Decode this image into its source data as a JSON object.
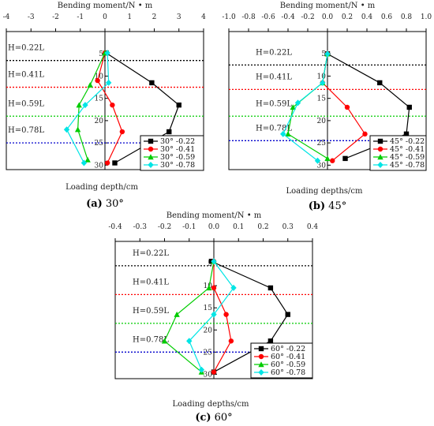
{
  "chart_data": [
    {
      "type": "line",
      "panel": "a",
      "caption_letter": "(a)",
      "caption_text": "30°",
      "xlabel_top": "Bending moment/N • m",
      "ylabel_bottom": "Loading depth/cm",
      "xlim": [
        -4,
        4
      ],
      "ylim": [
        0,
        30
      ],
      "x_ticks": [
        -4,
        -3,
        -2,
        -1,
        0,
        1,
        2,
        3,
        4
      ],
      "x_tick_labels": [
        "-4",
        "-3",
        "-2",
        "-1",
        "0",
        "1",
        "2",
        "3",
        "4"
      ],
      "y_ticks": [
        5,
        10,
        15,
        20,
        25,
        30
      ],
      "y_tick_labels": [
        "5",
        "10",
        "15",
        "20",
        "25",
        "30"
      ],
      "h_lines": [
        {
          "label": "H=0.22L",
          "depth": 6.5,
          "color": "#000000"
        },
        {
          "label": "H=0.41L",
          "depth": 12.5,
          "color": "#ff0000"
        },
        {
          "label": "H=0.59L",
          "depth": 19.0,
          "color": "#00cc00"
        },
        {
          "label": "H=0.78L",
          "depth": 25.0,
          "color": "#0000cc"
        }
      ],
      "legend_position": "bottom-right",
      "series": [
        {
          "name": "30° -0.22",
          "color": "#000000",
          "marker": "square",
          "points": [
            [
              0.05,
              4.8
            ],
            [
              1.9,
              11.5
            ],
            [
              3.0,
              16.5
            ],
            [
              2.6,
              22.5
            ],
            [
              0.4,
              29.5
            ]
          ]
        },
        {
          "name": "30° -0.41",
          "color": "#ff0000",
          "marker": "circle",
          "points": [
            [
              0.0,
              4.8
            ],
            [
              -0.3,
              11.0
            ],
            [
              0.3,
              16.5
            ],
            [
              0.7,
              22.5
            ],
            [
              0.1,
              29.5
            ]
          ]
        },
        {
          "name": "30° -0.59",
          "color": "#00cc00",
          "marker": "triangle",
          "points": [
            [
              0.0,
              4.8
            ],
            [
              -0.6,
              12.0
            ],
            [
              -1.05,
              16.5
            ],
            [
              -1.1,
              22.0
            ],
            [
              -0.7,
              28.8
            ]
          ]
        },
        {
          "name": "30° -0.78",
          "color": "#00e5e5",
          "marker": "diamond",
          "points": [
            [
              0.1,
              4.8
            ],
            [
              0.15,
              11.5
            ],
            [
              -0.8,
              16.5
            ],
            [
              -1.55,
              22.0
            ],
            [
              -0.85,
              29.5
            ]
          ]
        }
      ]
    },
    {
      "type": "line",
      "panel": "b",
      "caption_letter": "(b)",
      "caption_text": "45°",
      "xlabel_top": "Bending moment/N • m",
      "ylabel_bottom": "Loading depths/cm",
      "xlim": [
        -1.0,
        1.0
      ],
      "ylim": [
        0,
        30
      ],
      "x_ticks": [
        -1.0,
        -0.8,
        -0.6,
        -0.4,
        -0.2,
        0.0,
        0.2,
        0.4,
        0.6,
        0.8,
        1.0
      ],
      "x_tick_labels": [
        "-1.0",
        "-0.8",
        "-0.6",
        "-0.4",
        "-0.2",
        "0.0",
        "0.2",
        "0.4",
        "0.6",
        "0.8",
        "1.0"
      ],
      "y_ticks": [
        5,
        10,
        15,
        20,
        25,
        30
      ],
      "y_tick_labels": [
        "5",
        "10",
        "15",
        "20",
        "25",
        "30"
      ],
      "h_lines": [
        {
          "label": "H=0.22L",
          "depth": 7.5,
          "color": "#000000"
        },
        {
          "label": "H=0.41L",
          "depth": 13.0,
          "color": "#ff0000"
        },
        {
          "label": "H=0.59L",
          "depth": 19.0,
          "color": "#00cc00"
        },
        {
          "label": "H=0.78L",
          "depth": 24.5,
          "color": "#0000cc"
        }
      ],
      "legend_position": "bottom-right",
      "series": [
        {
          "name": "45° -0.22",
          "color": "#000000",
          "marker": "square",
          "points": [
            [
              0.0,
              5.0
            ],
            [
              0.53,
              11.5
            ],
            [
              0.83,
              17.0
            ],
            [
              0.8,
              23.0
            ],
            [
              0.18,
              28.5
            ]
          ]
        },
        {
          "name": "45° -0.41",
          "color": "#ff0000",
          "marker": "circle",
          "points": [
            [
              0.0,
              5.0
            ],
            [
              -0.05,
              11.5
            ],
            [
              0.2,
              17.0
            ],
            [
              0.38,
              23.0
            ],
            [
              0.05,
              29.0
            ]
          ]
        },
        {
          "name": "45° -0.59",
          "color": "#00cc00",
          "marker": "triangle",
          "points": [
            [
              0.0,
              5.0
            ],
            [
              -0.05,
              11.5
            ],
            [
              -0.35,
              17.0
            ],
            [
              -0.4,
              23.0
            ],
            [
              0.0,
              28.5
            ]
          ]
        },
        {
          "name": "45° -0.78",
          "color": "#00e5e5",
          "marker": "diamond",
          "points": [
            [
              0.0,
              5.0
            ],
            [
              -0.05,
              11.5
            ],
            [
              -0.3,
              16.0
            ],
            [
              -0.45,
              23.0
            ],
            [
              -0.1,
              29.0
            ]
          ]
        }
      ]
    },
    {
      "type": "line",
      "panel": "c",
      "caption_letter": "(c)",
      "caption_text": "60°",
      "xlabel_top": "Bending moment/N • m",
      "ylabel_bottom": "Loading depths/cm",
      "xlim": [
        -0.4,
        0.4
      ],
      "ylim": [
        0,
        30
      ],
      "x_ticks": [
        -0.4,
        -0.3,
        -0.2,
        -0.1,
        0.0,
        0.1,
        0.2,
        0.3,
        0.4
      ],
      "x_tick_labels": [
        "-0.4",
        "-0.3",
        "-0.2",
        "-0.1",
        "0.0",
        "0.1",
        "0.2",
        "0.3",
        "0.4"
      ],
      "y_ticks": [
        5,
        10,
        15,
        20,
        25,
        30
      ],
      "y_tick_labels": [
        "5",
        "10",
        "15",
        "20",
        "25",
        "30"
      ],
      "h_lines": [
        {
          "label": "H=0.22L",
          "depth": 5.5,
          "color": "#000000"
        },
        {
          "label": "H=0.41L",
          "depth": 12.0,
          "color": "#ff0000"
        },
        {
          "label": "H=0.59L",
          "depth": 18.5,
          "color": "#00cc00"
        },
        {
          "label": "H=0.78L",
          "depth": 25.0,
          "color": "#0000cc"
        }
      ],
      "legend_position": "bottom-right",
      "series": [
        {
          "name": "60° -0.22",
          "color": "#000000",
          "marker": "square",
          "points": [
            [
              -0.01,
              4.5
            ],
            [
              0.23,
              10.5
            ],
            [
              0.3,
              16.5
            ],
            [
              0.23,
              22.5
            ],
            [
              0.0,
              29.5
            ]
          ]
        },
        {
          "name": "60° -0.41",
          "color": "#ff0000",
          "marker": "circle",
          "points": [
            [
              0.0,
              4.5
            ],
            [
              0.0,
              10.5
            ],
            [
              0.05,
              16.5
            ],
            [
              0.07,
              22.5
            ],
            [
              0.0,
              29.5
            ]
          ]
        },
        {
          "name": "60° -0.59",
          "color": "#00cc00",
          "marker": "triangle",
          "points": [
            [
              0.0,
              4.5
            ],
            [
              -0.02,
              10.5
            ],
            [
              -0.15,
              16.5
            ],
            [
              -0.2,
              22.5
            ],
            [
              -0.05,
              29.5
            ]
          ]
        },
        {
          "name": "60° -0.78",
          "color": "#00e5e5",
          "marker": "diamond",
          "points": [
            [
              0.0,
              4.5
            ],
            [
              0.08,
              10.5
            ],
            [
              0.0,
              16.5
            ],
            [
              -0.1,
              22.5
            ],
            [
              -0.05,
              29.0
            ]
          ]
        }
      ]
    }
  ]
}
